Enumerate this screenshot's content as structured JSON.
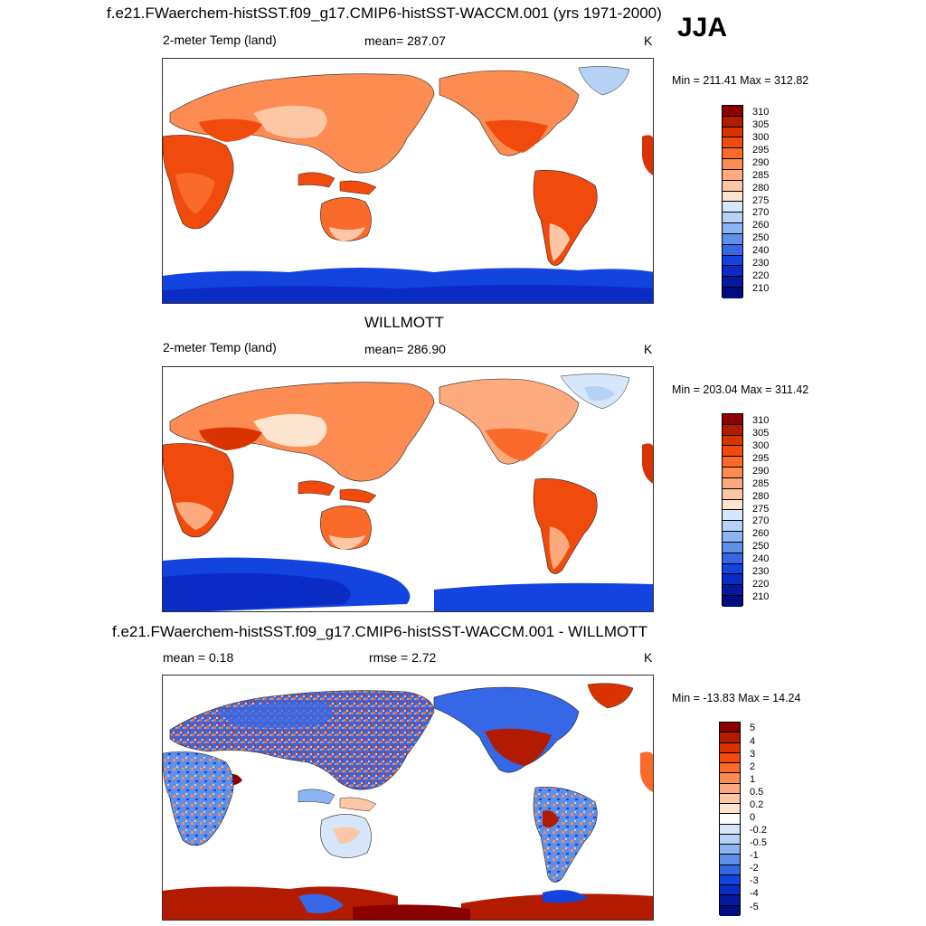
{
  "season": "JJA",
  "panels": [
    {
      "id": "model",
      "title": "f.e21.FWaerchem-histSST.f09_g17.CMIP6-histSST-WACCM.001 (yrs 1971-2000)",
      "left_label": "2-meter Temp (land)",
      "center_label": "mean= 287.07",
      "units": "K",
      "minmax": "Min = 211.41 Max = 312.82",
      "colorbar": {
        "colors": [
          "#8b0000",
          "#b31b00",
          "#d93300",
          "#f04a0c",
          "#fa6a2a",
          "#fc8c52",
          "#fcaa7e",
          "#fdc7a6",
          "#fde4cf",
          "#d6e6fb",
          "#b6d1f6",
          "#8db4f2",
          "#5e90ea",
          "#3567e6",
          "#1344e0",
          "#0b2cc4",
          "#0418a0",
          "#000d80"
        ],
        "labels": [
          "310",
          "305",
          "300",
          "295",
          "290",
          "285",
          "280",
          "275",
          "270",
          "260",
          "250",
          "240",
          "230",
          "220",
          "210"
        ]
      }
    },
    {
      "id": "obs",
      "title": "WILLMOTT",
      "left_label": "2-meter Temp (land)",
      "center_label": "mean= 286.90",
      "units": "K",
      "minmax": "Min = 203.04 Max = 311.42",
      "colorbar": {
        "colors": [
          "#8b0000",
          "#b31b00",
          "#d93300",
          "#f04a0c",
          "#fa6a2a",
          "#fc8c52",
          "#fcaa7e",
          "#fdc7a6",
          "#fde4cf",
          "#d6e6fb",
          "#b6d1f6",
          "#8db4f2",
          "#5e90ea",
          "#3567e6",
          "#1344e0",
          "#0b2cc4",
          "#0418a0",
          "#000d80"
        ],
        "labels": [
          "310",
          "305",
          "300",
          "295",
          "290",
          "285",
          "280",
          "275",
          "270",
          "260",
          "250",
          "240",
          "230",
          "220",
          "210"
        ]
      }
    },
    {
      "id": "diff",
      "title": "f.e21.FWaerchem-histSST.f09_g17.CMIP6-histSST-WACCM.001 - WILLMOTT",
      "left_label": "mean =   0.18",
      "center_label": "rmse =   2.72",
      "units": "K",
      "minmax": "Min = -13.83 Max =  14.24",
      "colorbar": {
        "colors": [
          "#8b0000",
          "#b31b00",
          "#d93300",
          "#f04a0c",
          "#fa6a2a",
          "#fc8c52",
          "#fcaa7e",
          "#fdc7a6",
          "#fde4cf",
          "#ffffff",
          "#d6e6fb",
          "#b6d1f6",
          "#8db4f2",
          "#5e90ea",
          "#3567e6",
          "#1344e0",
          "#0b2cc4",
          "#0418a0",
          "#000d80"
        ],
        "labels": [
          "5",
          "4",
          "3",
          "2",
          "1",
          "0.5",
          "0.2",
          "0",
          "-0.2",
          "-0.5",
          "-1",
          "-2",
          "-3",
          "-4",
          "-5"
        ]
      }
    }
  ]
}
